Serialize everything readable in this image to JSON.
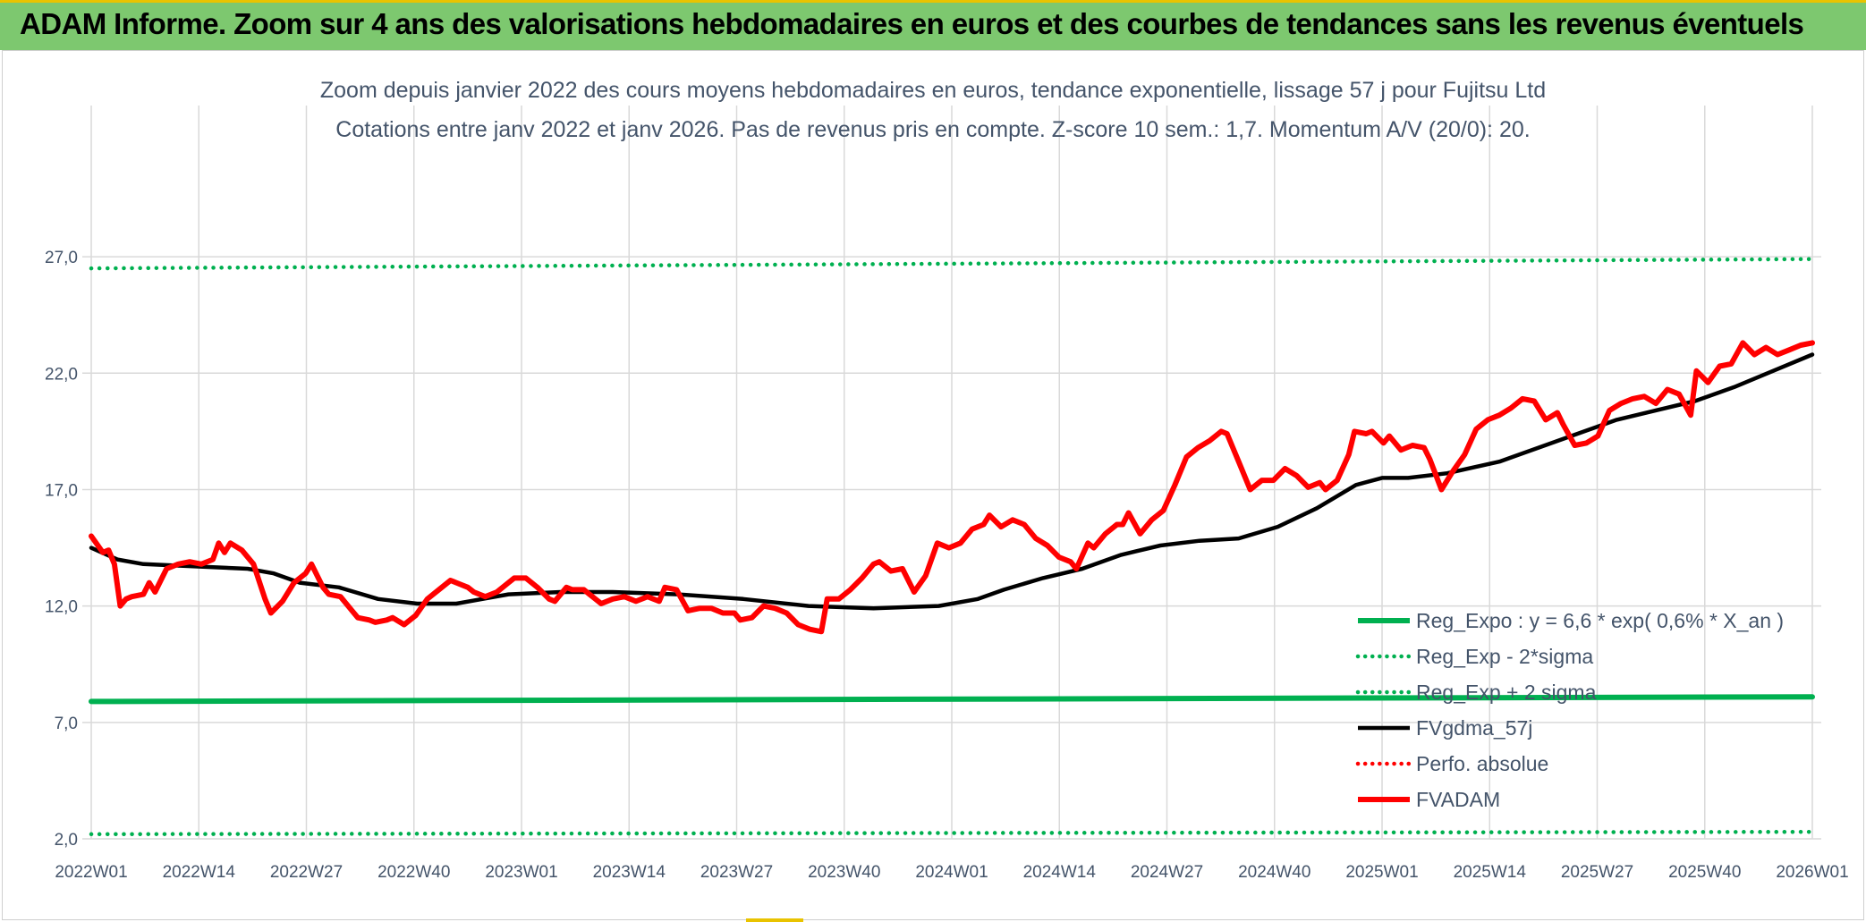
{
  "header": {
    "title": "ADAM Informe. Zoom sur 4 ans des valorisations hebdomadaires en euros et des courbes de tendances sans les revenus éventuels"
  },
  "chart_data": {
    "type": "line",
    "title": "Zoom depuis janvier 2022 des cours moyens hebdomadaires en euros, tendance exponentielle, lissage 57 j pour Fujitsu Ltd",
    "subtitle": "Cotations entre janv 2022 et janv 2026. Pas de revenus pris en compte. Z-score 10 sem.: 1,7. Momentum A/V (20/0): 20.",
    "xlabel": "",
    "ylabel": "",
    "ylim": [
      2,
      30
    ],
    "y_ticks": [
      "2,0",
      "7,0",
      "12,0",
      "17,0",
      "22,0",
      "27,0"
    ],
    "x_ticks": [
      "2022W01",
      "2022W14",
      "2022W27",
      "2022W40",
      "2023W01",
      "2023W14",
      "2023W27",
      "2023W40",
      "2024W01",
      "2024W14",
      "2024W27",
      "2024W40",
      "2025W01",
      "2025W14",
      "2025W27",
      "2025W40",
      "2026W01"
    ],
    "grid": true,
    "legend_position": "bottom-right",
    "series": [
      {
        "name": "Reg_Expo : y = 6,6 * exp( 0,6% *  X_an )",
        "color": "#00b050",
        "style": "solid",
        "points": [
          [
            0,
            7.9
          ],
          [
            208,
            8.1
          ]
        ]
      },
      {
        "name": "Reg_Exp - 2*sigma",
        "color": "#00b050",
        "style": "dotted",
        "points": [
          [
            0,
            2.2
          ],
          [
            208,
            2.3
          ]
        ]
      },
      {
        "name": "Reg_Exp + 2 sigma",
        "color": "#00b050",
        "style": "dotted",
        "points": [
          [
            0,
            26.5
          ],
          [
            208,
            26.9
          ]
        ]
      },
      {
        "name": "FVgdma_57j",
        "color": "#000000",
        "style": "solid",
        "points": [
          [
            0,
            14.5
          ],
          [
            4,
            14.0
          ],
          [
            8,
            13.8
          ],
          [
            16,
            13.7
          ],
          [
            24,
            13.6
          ],
          [
            28,
            13.4
          ],
          [
            32,
            13.0
          ],
          [
            38,
            12.8
          ],
          [
            44,
            12.3
          ],
          [
            50,
            12.1
          ],
          [
            56,
            12.1
          ],
          [
            60,
            12.3
          ],
          [
            64,
            12.5
          ],
          [
            72,
            12.6
          ],
          [
            80,
            12.6
          ],
          [
            90,
            12.5
          ],
          [
            100,
            12.3
          ],
          [
            110,
            12.0
          ],
          [
            120,
            11.9
          ],
          [
            130,
            12.0
          ],
          [
            136,
            12.3
          ],
          [
            140,
            12.7
          ],
          [
            146,
            13.2
          ],
          [
            152,
            13.6
          ],
          [
            158,
            14.2
          ],
          [
            164,
            14.6
          ],
          [
            170,
            14.8
          ],
          [
            176,
            14.9
          ],
          [
            182,
            15.4
          ],
          [
            188,
            16.2
          ],
          [
            194,
            17.2
          ],
          [
            198,
            17.5
          ],
          [
            202,
            17.5
          ],
          [
            208,
            17.7
          ],
          [
            216,
            18.2
          ],
          [
            222,
            18.8
          ],
          [
            228,
            19.4
          ],
          [
            234,
            20.0
          ],
          [
            240,
            20.4
          ],
          [
            246,
            20.8
          ],
          [
            252,
            21.4
          ],
          [
            258,
            22.1
          ],
          [
            264,
            22.8
          ]
        ]
      },
      {
        "name": "Perfo. absolue",
        "color": "#ff0000",
        "style": "dotted",
        "points": []
      },
      {
        "name": "FVADAM",
        "color": "#ff0000",
        "style": "solid",
        "points": [
          [
            0,
            15.0
          ],
          [
            2,
            14.3
          ],
          [
            3,
            14.4
          ],
          [
            4,
            13.8
          ],
          [
            5,
            12.0
          ],
          [
            6,
            12.3
          ],
          [
            7,
            12.4
          ],
          [
            9,
            12.5
          ],
          [
            10,
            13.0
          ],
          [
            11,
            12.6
          ],
          [
            13,
            13.6
          ],
          [
            15,
            13.8
          ],
          [
            17,
            13.9
          ],
          [
            19,
            13.8
          ],
          [
            21,
            14.0
          ],
          [
            22,
            14.7
          ],
          [
            23,
            14.3
          ],
          [
            24,
            14.7
          ],
          [
            26,
            14.4
          ],
          [
            28,
            13.8
          ],
          [
            30,
            12.3
          ],
          [
            31,
            11.7
          ],
          [
            33,
            12.2
          ],
          [
            35,
            13.0
          ],
          [
            37,
            13.4
          ],
          [
            38,
            13.8
          ],
          [
            40,
            12.8
          ],
          [
            41,
            12.5
          ],
          [
            43,
            12.4
          ],
          [
            45,
            11.8
          ],
          [
            46,
            11.5
          ],
          [
            48,
            11.4
          ],
          [
            49,
            11.3
          ],
          [
            51,
            11.4
          ],
          [
            52,
            11.5
          ],
          [
            54,
            11.2
          ],
          [
            56,
            11.6
          ],
          [
            58,
            12.3
          ],
          [
            60,
            12.7
          ],
          [
            62,
            13.1
          ],
          [
            63,
            13.0
          ],
          [
            65,
            12.8
          ],
          [
            66,
            12.6
          ],
          [
            68,
            12.4
          ],
          [
            70,
            12.6
          ],
          [
            72,
            13.0
          ],
          [
            73,
            13.2
          ],
          [
            75,
            13.2
          ],
          [
            77,
            12.8
          ],
          [
            79,
            12.3
          ],
          [
            80,
            12.2
          ],
          [
            82,
            12.8
          ],
          [
            83,
            12.7
          ],
          [
            85,
            12.7
          ],
          [
            86,
            12.5
          ],
          [
            87,
            12.3
          ],
          [
            88,
            12.1
          ],
          [
            90,
            12.3
          ],
          [
            92,
            12.4
          ],
          [
            94,
            12.2
          ],
          [
            96,
            12.4
          ],
          [
            98,
            12.2
          ],
          [
            99,
            12.8
          ],
          [
            101,
            12.7
          ],
          [
            103,
            11.8
          ],
          [
            105,
            11.9
          ],
          [
            107,
            11.9
          ],
          [
            109,
            11.7
          ],
          [
            111,
            11.7
          ],
          [
            112,
            11.4
          ],
          [
            114,
            11.5
          ],
          [
            116,
            12.0
          ],
          [
            118,
            11.9
          ],
          [
            120,
            11.7
          ],
          [
            122,
            11.2
          ],
          [
            124,
            11.0
          ],
          [
            126,
            10.9
          ],
          [
            127,
            12.3
          ],
          [
            129,
            12.3
          ],
          [
            131,
            12.7
          ],
          [
            133,
            13.2
          ],
          [
            135,
            13.8
          ],
          [
            136,
            13.9
          ],
          [
            138,
            13.5
          ],
          [
            140,
            13.6
          ],
          [
            142,
            12.6
          ],
          [
            144,
            13.3
          ],
          [
            146,
            14.7
          ],
          [
            148,
            14.5
          ],
          [
            150,
            14.7
          ],
          [
            152,
            15.3
          ],
          [
            154,
            15.5
          ],
          [
            155,
            15.9
          ],
          [
            157,
            15.4
          ],
          [
            159,
            15.7
          ],
          [
            161,
            15.5
          ],
          [
            163,
            14.9
          ],
          [
            165,
            14.6
          ],
          [
            167,
            14.1
          ],
          [
            169,
            13.9
          ],
          [
            170,
            13.6
          ],
          [
            172,
            14.7
          ],
          [
            173,
            14.5
          ],
          [
            175,
            15.1
          ],
          [
            177,
            15.5
          ],
          [
            178,
            15.5
          ],
          [
            179,
            16.0
          ],
          [
            181,
            15.1
          ],
          [
            183,
            15.7
          ],
          [
            185,
            16.1
          ],
          [
            187,
            17.2
          ],
          [
            189,
            18.4
          ],
          [
            191,
            18.8
          ],
          [
            193,
            19.1
          ],
          [
            195,
            19.5
          ],
          [
            196,
            19.4
          ],
          [
            198,
            18.2
          ],
          [
            200,
            17.0
          ],
          [
            202,
            17.4
          ],
          [
            204,
            17.4
          ],
          [
            206,
            17.9
          ],
          [
            208,
            17.6
          ],
          [
            210,
            17.1
          ],
          [
            212,
            17.3
          ],
          [
            213,
            17.0
          ],
          [
            215,
            17.4
          ],
          [
            217,
            18.5
          ],
          [
            218,
            19.5
          ],
          [
            220,
            19.4
          ],
          [
            221,
            19.5
          ],
          [
            223,
            19.0
          ],
          [
            224,
            19.3
          ],
          [
            226,
            18.7
          ],
          [
            228,
            18.9
          ],
          [
            230,
            18.8
          ],
          [
            231,
            18.3
          ],
          [
            233,
            17.0
          ],
          [
            235,
            17.8
          ],
          [
            237,
            18.5
          ],
          [
            239,
            19.6
          ],
          [
            241,
            20.0
          ],
          [
            243,
            20.2
          ],
          [
            245,
            20.5
          ],
          [
            247,
            20.9
          ],
          [
            249,
            20.8
          ],
          [
            251,
            20.0
          ],
          [
            253,
            20.3
          ],
          [
            254,
            19.8
          ],
          [
            256,
            18.9
          ],
          [
            258,
            19.0
          ],
          [
            260,
            19.3
          ],
          [
            262,
            20.4
          ],
          [
            264,
            20.7
          ],
          [
            266,
            20.9
          ],
          [
            268,
            21.0
          ],
          [
            270,
            20.7
          ],
          [
            272,
            21.3
          ],
          [
            274,
            21.1
          ],
          [
            276,
            20.2
          ],
          [
            277,
            22.1
          ],
          [
            279,
            21.6
          ],
          [
            281,
            22.3
          ],
          [
            283,
            22.4
          ],
          [
            285,
            23.3
          ],
          [
            287,
            22.8
          ],
          [
            289,
            23.1
          ],
          [
            291,
            22.8
          ],
          [
            293,
            23.0
          ],
          [
            295,
            23.2
          ],
          [
            297,
            23.3
          ]
        ]
      }
    ]
  }
}
